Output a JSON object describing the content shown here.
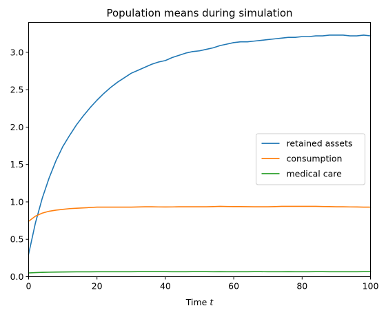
{
  "chart_data": {
    "type": "line",
    "title": "Population means during simulation",
    "xlabel": "Time",
    "xlabel_var": "t",
    "ylabel": "",
    "xlim": [
      0,
      100
    ],
    "ylim": [
      0,
      3.4
    ],
    "xticks": [
      0,
      20,
      40,
      60,
      80,
      100
    ],
    "yticks": [
      0.0,
      0.5,
      1.0,
      1.5,
      2.0,
      2.5,
      3.0
    ],
    "ytick_labels": [
      "0.0",
      "0.5",
      "1.0",
      "1.5",
      "2.0",
      "2.5",
      "3.0"
    ],
    "grid": false,
    "legend_position": "center-right",
    "x": [
      0,
      2,
      4,
      6,
      8,
      10,
      12,
      14,
      16,
      18,
      20,
      22,
      24,
      26,
      28,
      30,
      32,
      34,
      36,
      38,
      40,
      42,
      44,
      46,
      48,
      50,
      52,
      54,
      56,
      58,
      60,
      62,
      64,
      66,
      68,
      70,
      72,
      74,
      76,
      78,
      80,
      82,
      84,
      86,
      88,
      90,
      92,
      94,
      96,
      98,
      100
    ],
    "series": [
      {
        "name": "retained assets",
        "color": "#1f77b4",
        "values": [
          0.3,
          0.72,
          1.05,
          1.32,
          1.55,
          1.74,
          1.89,
          2.03,
          2.15,
          2.26,
          2.36,
          2.45,
          2.53,
          2.6,
          2.66,
          2.72,
          2.76,
          2.8,
          2.84,
          2.87,
          2.89,
          2.93,
          2.96,
          2.99,
          3.01,
          3.02,
          3.04,
          3.06,
          3.09,
          3.11,
          3.13,
          3.14,
          3.14,
          3.15,
          3.16,
          3.17,
          3.18,
          3.19,
          3.2,
          3.2,
          3.21,
          3.21,
          3.22,
          3.22,
          3.23,
          3.23,
          3.23,
          3.22,
          3.22,
          3.23,
          3.22
        ]
      },
      {
        "name": "consumption",
        "color": "#ff7f0e",
        "values": [
          0.74,
          0.81,
          0.85,
          0.875,
          0.89,
          0.9,
          0.91,
          0.915,
          0.92,
          0.925,
          0.93,
          0.93,
          0.93,
          0.93,
          0.93,
          0.93,
          0.932,
          0.935,
          0.935,
          0.933,
          0.932,
          0.933,
          0.935,
          0.935,
          0.935,
          0.935,
          0.935,
          0.937,
          0.94,
          0.938,
          0.937,
          0.937,
          0.936,
          0.935,
          0.935,
          0.935,
          0.937,
          0.94,
          0.94,
          0.94,
          0.94,
          0.94,
          0.94,
          0.938,
          0.937,
          0.935,
          0.935,
          0.933,
          0.932,
          0.93,
          0.93
        ]
      },
      {
        "name": "medical care",
        "color": "#2ca02c",
        "values": [
          0.05,
          0.055,
          0.058,
          0.06,
          0.062,
          0.063,
          0.064,
          0.065,
          0.065,
          0.065,
          0.066,
          0.066,
          0.066,
          0.066,
          0.066,
          0.066,
          0.067,
          0.067,
          0.067,
          0.067,
          0.067,
          0.066,
          0.066,
          0.066,
          0.067,
          0.067,
          0.067,
          0.066,
          0.067,
          0.066,
          0.066,
          0.066,
          0.066,
          0.067,
          0.067,
          0.066,
          0.066,
          0.066,
          0.067,
          0.066,
          0.066,
          0.066,
          0.067,
          0.067,
          0.066,
          0.066,
          0.066,
          0.066,
          0.066,
          0.067,
          0.067
        ]
      }
    ]
  }
}
